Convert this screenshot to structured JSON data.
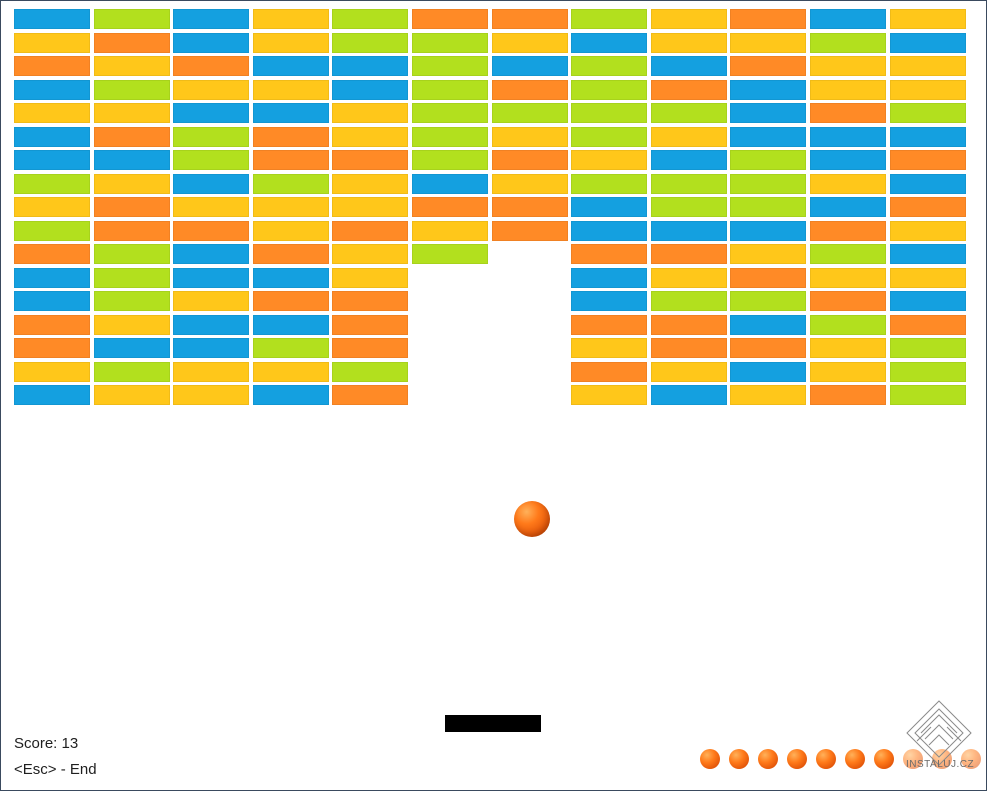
{
  "colors": {
    "B": "#14a0e0",
    "G": "#b2e01e",
    "Y": "#ffc71a",
    "O": "#ff8a26"
  },
  "brick_rows": [
    "BGBYGOOGYOBY",
    "YOBYGGYBYYGB",
    "OYOBBGBGBOYY",
    "BGYYBGOGOBYY",
    "YYBBYGGGGBOG",
    "BOGOYGYGYBBB",
    "BBGOOGOYBGBO",
    "GYBGYBYGGGYB",
    "YOYYYOOBGGBO",
    "GOOYOYOBBBOY",
    "OGBOYG.OOYGB",
    "BGBBY..BYOYY",
    "BGYOO..BGGOB",
    "OYBBO..OOBGO",
    "OBBGO..YOOYG",
    "YGYYG..OYBYG",
    "BYYBO..YBYOG"
  ],
  "hud": {
    "score_text": "Score: 13",
    "esc_text": "<Esc> - End"
  },
  "lives": {
    "remaining": 7,
    "total": 10
  },
  "watermark": {
    "text": "INSTALUJ.CZ"
  }
}
